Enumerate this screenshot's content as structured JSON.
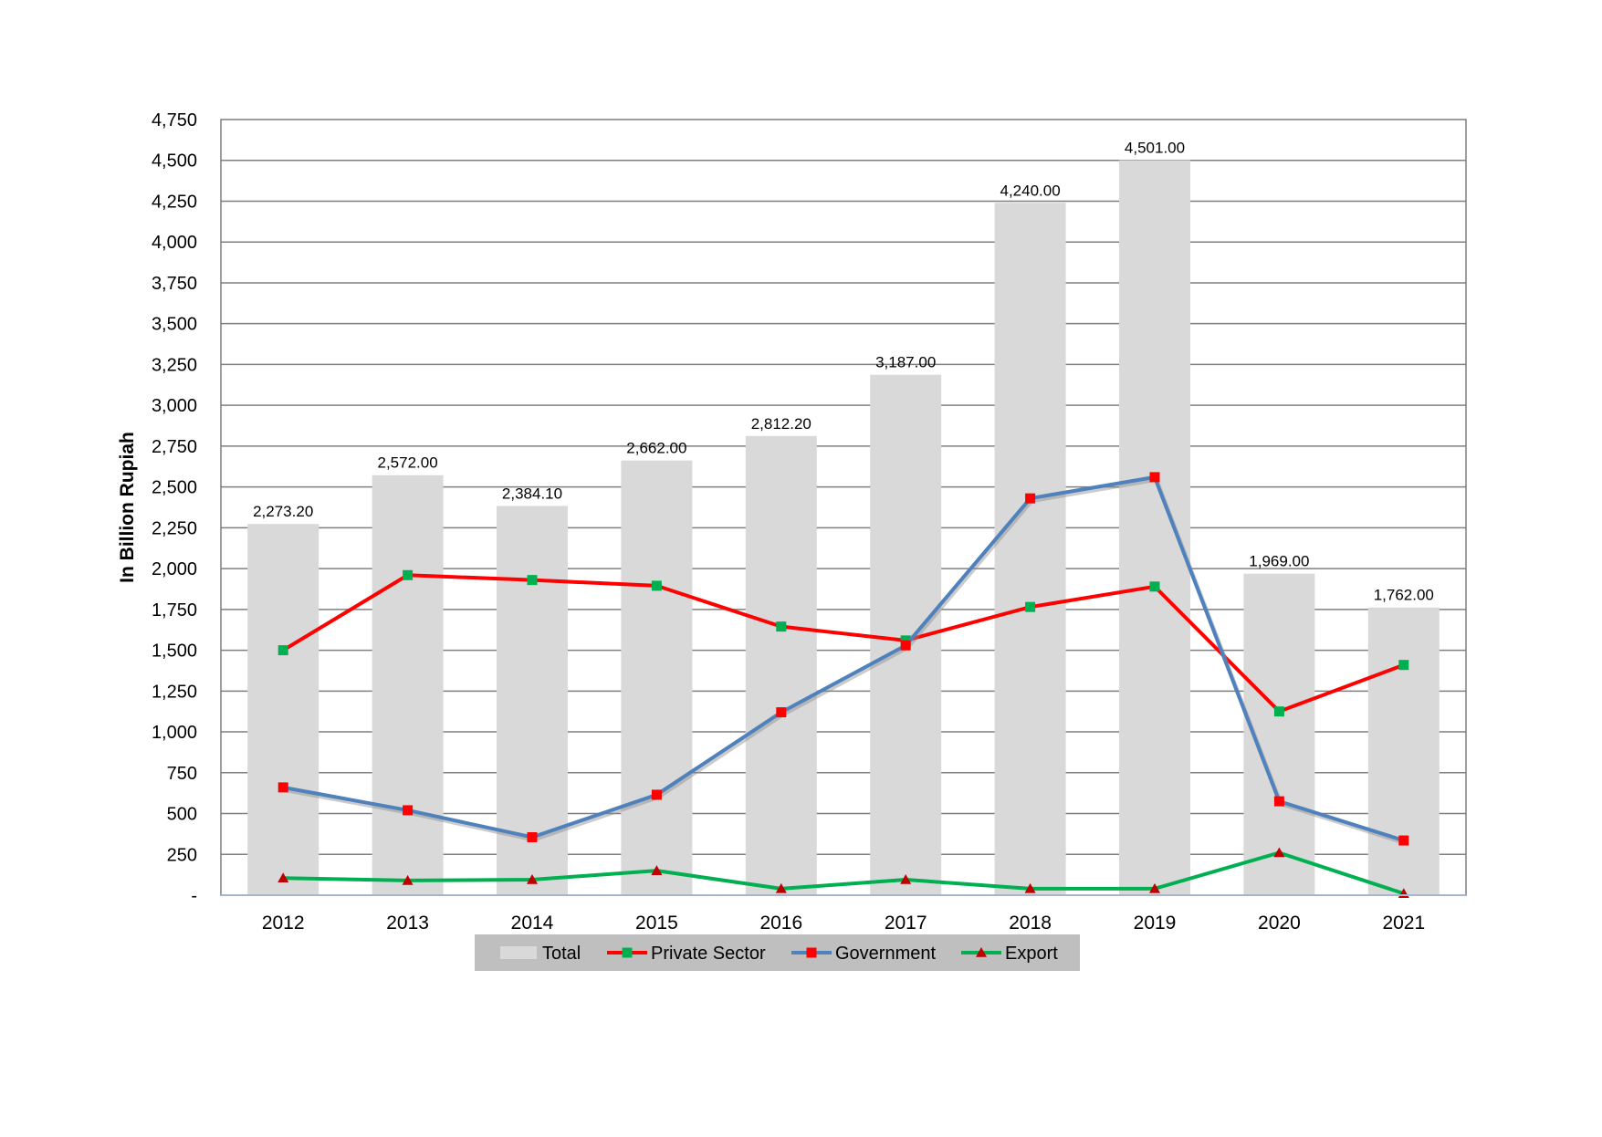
{
  "chart_data": {
    "type": "bar",
    "categories": [
      "2012",
      "2013",
      "2014",
      "2015",
      "2016",
      "2017",
      "2018",
      "2019",
      "2020",
      "2021"
    ],
    "ylabel": "In Billion Rupiah",
    "ylim": [
      0,
      4750
    ],
    "y_ticks": [
      0,
      250,
      500,
      750,
      1000,
      1250,
      1500,
      1750,
      2000,
      2250,
      2500,
      2750,
      3000,
      3250,
      3500,
      3750,
      4000,
      4250,
      4500,
      4750
    ],
    "y_tick_labels": [
      "-",
      "250",
      "500",
      "750",
      "1,000",
      "1,250",
      "1,500",
      "1,750",
      "2,000",
      "2,250",
      "2,500",
      "2,750",
      "3,000",
      "3,250",
      "3,500",
      "3,750",
      "4,000",
      "4,250",
      "4,500",
      "4,750"
    ],
    "grid": true,
    "legend_position": "bottom",
    "series": [
      {
        "name": "Total",
        "kind": "bar",
        "color": "#d9d9d9",
        "values": [
          2273.2,
          2572.0,
          2384.1,
          2662.0,
          2812.2,
          3187.0,
          4240.0,
          4501.0,
          1969.0,
          1762.0
        ],
        "data_labels": [
          "2,273.20",
          "2,572.00",
          "2,384.10",
          "2,662.00",
          "2,812.20",
          "3,187.00",
          "4,240.00",
          "4,501.00",
          "1,969.00",
          "1,762.00"
        ]
      },
      {
        "name": "Private Sector",
        "kind": "line",
        "color": "#ff0000",
        "marker": "square",
        "marker_color": "#00b050",
        "values": [
          1500,
          1960,
          1930,
          1895,
          1645,
          1560,
          1765,
          1890,
          1125,
          1410
        ]
      },
      {
        "name": "Government",
        "kind": "line",
        "color": "#4f81bd",
        "marker": "square",
        "marker_color": "#ff0000",
        "values": [
          660,
          520,
          355,
          615,
          1120,
          1530,
          2430,
          2560,
          575,
          335
        ]
      },
      {
        "name": "Export",
        "kind": "line",
        "color": "#00b050",
        "marker": "triangle",
        "marker_color": "#c00000",
        "values": [
          105,
          90,
          95,
          150,
          40,
          95,
          40,
          40,
          260,
          10
        ]
      }
    ]
  }
}
